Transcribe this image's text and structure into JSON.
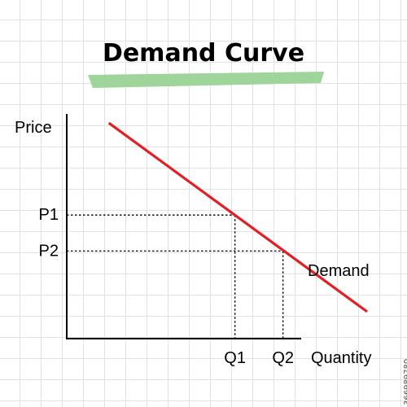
{
  "chart_data": {
    "type": "line",
    "title": "Demand Curve",
    "xlabel": "Quantity",
    "ylabel": "Price",
    "xlim": [
      0,
      10
    ],
    "ylim": [
      0,
      10
    ],
    "grid": false,
    "series": [
      {
        "name": "Demand",
        "x": [
          1.4,
          10.0
        ],
        "y": [
          9.6,
          1.2
        ],
        "color": "#e31e24"
      }
    ],
    "reference_points": [
      {
        "x_label": "Q1",
        "y_label": "P1",
        "x": 5.6,
        "y": 5.5
      },
      {
        "x_label": "Q2",
        "y_label": "P2",
        "x": 7.2,
        "y": 3.9
      }
    ]
  },
  "colors": {
    "curve": "#e31e24",
    "axes": "#000000",
    "title_highlight": "#9fd49a",
    "grid": "#e2e2e2"
  },
  "watermark": "366989780"
}
